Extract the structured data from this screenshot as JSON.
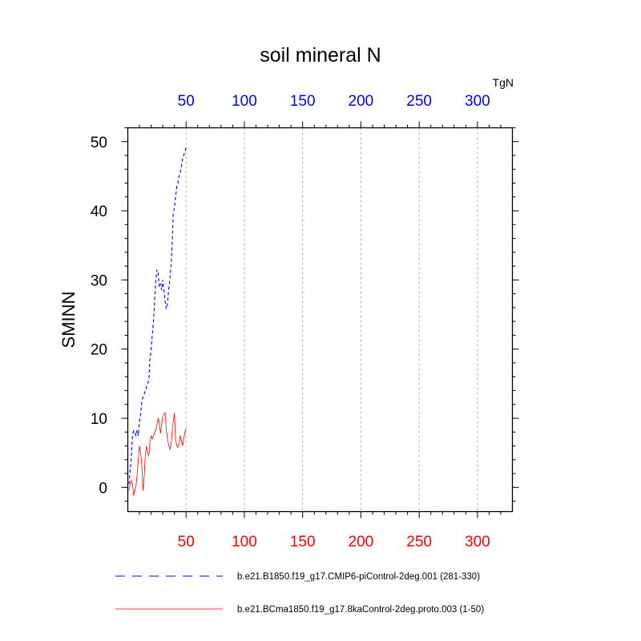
{
  "chart_data": {
    "type": "line",
    "title": "soil mineral N",
    "units": "TgN",
    "ylabel": "SMINN",
    "xlim": [
      0,
      330
    ],
    "ylim": [
      -3.5,
      52
    ],
    "x_ticks": [
      50,
      100,
      150,
      200,
      250,
      300
    ],
    "y_ticks": [
      0,
      10,
      20,
      30,
      40,
      50
    ],
    "top_axis_color": "#0000ff",
    "bottom_axis_color": "#ff0000",
    "grid": "vertical dashed at major x ticks",
    "legend_position": "bottom",
    "series": [
      {
        "name": "b.e21.B1850.f19_g17.CMIP6-piControl-2deg.001 (281-330)",
        "color": "#0000ff",
        "dash": "dashed",
        "x": [
          1,
          2,
          3,
          4,
          5,
          6,
          7,
          8,
          9,
          10,
          11,
          12,
          13,
          14,
          15,
          16,
          17,
          18,
          19,
          20,
          21,
          22,
          23,
          24,
          25,
          26,
          27,
          28,
          29,
          30,
          31,
          32,
          33,
          34,
          35,
          36,
          37,
          38,
          39,
          40,
          41,
          42,
          43,
          44,
          45,
          46,
          47,
          48,
          49,
          50
        ],
        "values": [
          0.5,
          2.5,
          4.5,
          7.5,
          8.2,
          8.0,
          7.5,
          8.3,
          7.5,
          9.5,
          10.5,
          12.5,
          13.0,
          13.5,
          14.0,
          14.5,
          15.0,
          15.5,
          18.5,
          20.0,
          22.0,
          24.0,
          27.0,
          30.0,
          31.5,
          31.0,
          29.0,
          29.5,
          28.5,
          30.0,
          28.5,
          27.0,
          25.8,
          26.5,
          28.5,
          30.0,
          32.0,
          35.0,
          39.5,
          40.5,
          42.0,
          43.5,
          44.0,
          45.0,
          45.5,
          46.5,
          47.5,
          48.0,
          48.6,
          49.2
        ]
      },
      {
        "name": "b.e21.BCma1850.f19_g17.8kaControl-2deg.proto.003 (1-50)",
        "color": "#ff0000",
        "dash": "solid",
        "x": [
          1,
          2,
          3,
          4,
          5,
          6,
          7,
          8,
          9,
          10,
          11,
          12,
          13,
          14,
          15,
          16,
          17,
          18,
          19,
          20,
          21,
          22,
          23,
          24,
          25,
          26,
          27,
          28,
          29,
          30,
          31,
          32,
          33,
          34,
          35,
          36,
          37,
          38,
          39,
          40,
          41,
          42,
          43,
          44,
          45,
          46,
          47,
          48,
          49,
          50
        ],
        "values": [
          -0.5,
          0.5,
          1.0,
          0.5,
          -1.2,
          -0.5,
          0.2,
          1.8,
          4.0,
          6.0,
          5.0,
          3.2,
          -0.5,
          1.5,
          4.5,
          6.0,
          5.0,
          4.5,
          6.5,
          7.5,
          7.0,
          7.5,
          8.0,
          8.3,
          9.0,
          10.0,
          9.5,
          7.8,
          9.0,
          10.3,
          10.5,
          10.8,
          8.5,
          7.0,
          6.2,
          5.5,
          6.0,
          8.0,
          9.5,
          10.8,
          7.0,
          6.0,
          5.8,
          6.2,
          7.5,
          6.8,
          6.0,
          7.0,
          8.0,
          8.5
        ]
      }
    ]
  }
}
